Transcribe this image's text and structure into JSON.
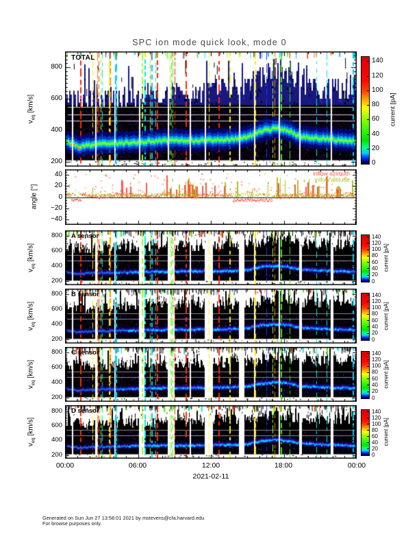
{
  "title": "SPC ion mode quick look, mode 0",
  "x_axis": {
    "ticks": [
      "00:00",
      "06:00",
      "12:00",
      "18:00",
      "00:00"
    ],
    "date": "2021-02-11"
  },
  "footer": {
    "line1": "Generated on Sun Jun 27 13:58:01 2021 by mstevens@cfa.harvard.edu",
    "line2": "For browse purposes only."
  },
  "chart_data": {
    "type": "heatmap",
    "description": "SPC ion mode quick look spectrograms: total and per-sensor ion current vs equivalent speed over one day, plus inflow angle time series",
    "time_range": [
      "2021-02-11 00:00",
      "2021-02-12 00:00"
    ],
    "colormap": [
      [
        0,
        "#000000"
      ],
      [
        0.02,
        "#000088"
      ],
      [
        0.06,
        "#0040ff"
      ],
      [
        0.1,
        "#00ccff"
      ],
      [
        0.15,
        "#00ff88"
      ],
      [
        0.22,
        "#00e400"
      ],
      [
        0.35,
        "#4cff00"
      ],
      [
        0.45,
        "#aaff00"
      ],
      [
        0.52,
        "#ffff00"
      ],
      [
        0.6,
        "#ffa500"
      ],
      [
        0.68,
        "#ff4400"
      ],
      [
        0.78,
        "#ff0800"
      ],
      [
        1,
        "#d80000"
      ]
    ],
    "stripe_palette": [
      "#ff2a00",
      "#ff2a00",
      "#ff7700",
      "#ffee00",
      "#44ee00",
      "#44ee00",
      "#00eedd",
      "#00ccff",
      "#2233ff",
      "#99ff33"
    ],
    "panels": {
      "total": {
        "label": "TOTAL",
        "ylabel": {
          "main": "v",
          "sub": "eq",
          "unit": " [km/s]"
        },
        "ylim": [
          170,
          900
        ],
        "yticks": [
          200,
          400,
          600,
          800
        ],
        "minor_tick": 25,
        "seed": 101,
        "texture_color": "#2a0a55",
        "white_lines": [
          550,
          500,
          460
        ],
        "band_profile": [
          [
            0,
            330
          ],
          [
            0.04,
            295
          ],
          [
            0.1,
            310
          ],
          [
            0.2,
            320
          ],
          [
            0.3,
            330
          ],
          [
            0.45,
            335
          ],
          [
            0.55,
            340
          ],
          [
            0.62,
            350
          ],
          [
            0.67,
            395
          ],
          [
            0.72,
            410
          ],
          [
            0.76,
            400
          ],
          [
            0.8,
            360
          ],
          [
            0.88,
            345
          ],
          [
            0.95,
            335
          ],
          [
            1,
            330
          ]
        ],
        "envelope_profile": [
          [
            0,
            640
          ],
          [
            0.06,
            600
          ],
          [
            0.15,
            610
          ],
          [
            0.3,
            630
          ],
          [
            0.45,
            640
          ],
          [
            0.55,
            650
          ],
          [
            0.63,
            670
          ],
          [
            0.68,
            760
          ],
          [
            0.74,
            780
          ],
          [
            0.78,
            700
          ],
          [
            0.85,
            660
          ],
          [
            0.93,
            650
          ],
          [
            1,
            680
          ]
        ],
        "band_layers": [
          [
            75,
            "#000a8a",
            0.75
          ],
          [
            45,
            "#0044dd",
            0.85
          ],
          [
            26,
            "#00b8ff",
            0.9
          ],
          [
            13,
            "#2bee55",
            1
          ],
          [
            7,
            "#66ff44",
            1
          ]
        ],
        "colorbar": {
          "label": "current [pA]",
          "ticks": [
            0,
            20,
            40,
            60,
            80,
            100,
            120,
            140
          ],
          "lim": [
            0,
            147
          ]
        }
      },
      "angle": {
        "ylabel": "angle [°]",
        "ylim": [
          -50,
          50
        ],
        "yticks": [
          -40,
          -20,
          0,
          20,
          40
        ],
        "minor_tick": 5,
        "seed": 606,
        "series": [
          {
            "name": "inflow azimuth",
            "color": "#ff5544"
          },
          {
            "name": "inflow altitude",
            "color": "#a8c81e"
          }
        ]
      },
      "a": {
        "label": "A sensor",
        "ylabel": {
          "main": "v",
          "sub": "eq",
          "unit": " [km/s]"
        },
        "ylim": [
          150,
          870
        ],
        "yticks": [
          200,
          400,
          600,
          800
        ],
        "minor_tick": 25,
        "seed": 202,
        "texture_color": "#1d0742",
        "white_lines": [
          545,
          470
        ],
        "band_profile": [
          [
            0,
            325
          ],
          [
            0.04,
            298
          ],
          [
            0.1,
            310
          ],
          [
            0.2,
            318
          ],
          [
            0.3,
            328
          ],
          [
            0.45,
            332
          ],
          [
            0.55,
            338
          ],
          [
            0.62,
            348
          ],
          [
            0.67,
            390
          ],
          [
            0.72,
            405
          ],
          [
            0.76,
            395
          ],
          [
            0.8,
            358
          ],
          [
            0.88,
            342
          ],
          [
            0.95,
            332
          ],
          [
            1,
            328
          ]
        ],
        "envelope_profile": [
          [
            0,
            650
          ],
          [
            0.08,
            610
          ],
          [
            0.2,
            640
          ],
          [
            0.35,
            650
          ],
          [
            0.5,
            660
          ],
          [
            0.65,
            690
          ],
          [
            0.72,
            770
          ],
          [
            0.8,
            700
          ],
          [
            0.9,
            670
          ],
          [
            1,
            690
          ]
        ],
        "band_layers": [
          [
            42,
            "#1a0566",
            0.9
          ],
          [
            24,
            "#2222cc",
            0.9
          ],
          [
            12,
            "#2255ff",
            0.95
          ],
          [
            6,
            "#00aaff",
            0.9
          ]
        ],
        "colorbar": {
          "label": "current [pA]",
          "ticks": [
            0,
            20,
            40,
            60,
            80,
            100,
            120,
            140
          ],
          "lim": [
            0,
            147
          ]
        }
      },
      "b": {
        "label": "B sensor",
        "ylabel": {
          "main": "v",
          "sub": "eq",
          "unit": " [km/s]"
        },
        "ylim": [
          150,
          870
        ],
        "yticks": [
          200,
          400,
          600,
          800
        ],
        "minor_tick": 25,
        "seed": 303,
        "texture_color": "#1d0742",
        "white_lines": [
          545,
          470
        ],
        "band_profile": [
          [
            0,
            325
          ],
          [
            0.04,
            298
          ],
          [
            0.1,
            310
          ],
          [
            0.2,
            318
          ],
          [
            0.3,
            328
          ],
          [
            0.45,
            332
          ],
          [
            0.55,
            338
          ],
          [
            0.62,
            348
          ],
          [
            0.67,
            390
          ],
          [
            0.72,
            405
          ],
          [
            0.76,
            395
          ],
          [
            0.8,
            358
          ],
          [
            0.88,
            342
          ],
          [
            0.95,
            332
          ],
          [
            1,
            328
          ]
        ],
        "envelope_profile": [
          [
            0,
            640
          ],
          [
            0.08,
            600
          ],
          [
            0.2,
            635
          ],
          [
            0.35,
            645
          ],
          [
            0.5,
            655
          ],
          [
            0.65,
            685
          ],
          [
            0.72,
            765
          ],
          [
            0.8,
            695
          ],
          [
            0.9,
            665
          ],
          [
            1,
            685
          ]
        ],
        "band_layers": [
          [
            42,
            "#1a0566",
            0.9
          ],
          [
            24,
            "#2222cc",
            0.9
          ],
          [
            12,
            "#2255ff",
            0.95
          ],
          [
            6,
            "#00aaff",
            0.9
          ]
        ],
        "colorbar": {
          "label": "current [pA]",
          "ticks": [
            0,
            20,
            40,
            60,
            80,
            100,
            120,
            140
          ],
          "lim": [
            0,
            147
          ]
        }
      },
      "c": {
        "label": "C sensor",
        "ylabel": {
          "main": "v",
          "sub": "eq",
          "unit": " [km/s]"
        },
        "ylim": [
          150,
          870
        ],
        "yticks": [
          200,
          400,
          600,
          800
        ],
        "minor_tick": 25,
        "seed": 404,
        "texture_color": "#1d0742",
        "white_lines": [
          545,
          470
        ],
        "band_profile": [
          [
            0,
            325
          ],
          [
            0.04,
            298
          ],
          [
            0.1,
            310
          ],
          [
            0.2,
            318
          ],
          [
            0.3,
            328
          ],
          [
            0.45,
            332
          ],
          [
            0.55,
            338
          ],
          [
            0.62,
            348
          ],
          [
            0.67,
            390
          ],
          [
            0.72,
            405
          ],
          [
            0.76,
            395
          ],
          [
            0.8,
            358
          ],
          [
            0.88,
            342
          ],
          [
            0.95,
            332
          ],
          [
            1,
            328
          ]
        ],
        "envelope_profile": [
          [
            0,
            645
          ],
          [
            0.08,
            605
          ],
          [
            0.2,
            638
          ],
          [
            0.35,
            648
          ],
          [
            0.5,
            658
          ],
          [
            0.65,
            688
          ],
          [
            0.72,
            768
          ],
          [
            0.8,
            698
          ],
          [
            0.9,
            668
          ],
          [
            1,
            688
          ]
        ],
        "band_layers": [
          [
            42,
            "#1a0566",
            0.9
          ],
          [
            24,
            "#2222cc",
            0.9
          ],
          [
            12,
            "#2255ff",
            0.95
          ],
          [
            6,
            "#00aaff",
            0.9
          ]
        ],
        "colorbar": {
          "label": "current [pA]",
          "ticks": [
            0,
            20,
            40,
            60,
            80,
            100,
            120,
            140
          ],
          "lim": [
            0,
            147
          ]
        }
      },
      "d": {
        "label": "D sensor",
        "ylabel": {
          "main": "v",
          "sub": "eq",
          "unit": " [km/s]"
        },
        "ylim": [
          150,
          880
        ],
        "yticks": [
          200,
          400,
          600,
          800
        ],
        "minor_tick": 25,
        "seed": 505,
        "texture_color": "#1d0742",
        "white_lines": [
          545,
          470
        ],
        "band_profile": [
          [
            0,
            325
          ],
          [
            0.04,
            298
          ],
          [
            0.1,
            310
          ],
          [
            0.2,
            318
          ],
          [
            0.3,
            328
          ],
          [
            0.45,
            332
          ],
          [
            0.55,
            338
          ],
          [
            0.62,
            348
          ],
          [
            0.67,
            390
          ],
          [
            0.72,
            405
          ],
          [
            0.76,
            395
          ],
          [
            0.8,
            358
          ],
          [
            0.88,
            342
          ],
          [
            0.95,
            332
          ],
          [
            1,
            328
          ]
        ],
        "envelope_profile": [
          [
            0,
            648
          ],
          [
            0.08,
            608
          ],
          [
            0.2,
            640
          ],
          [
            0.35,
            650
          ],
          [
            0.5,
            660
          ],
          [
            0.65,
            690
          ],
          [
            0.72,
            770
          ],
          [
            0.8,
            700
          ],
          [
            0.9,
            670
          ],
          [
            1,
            690
          ]
        ],
        "band_layers": [
          [
            42,
            "#1a0566",
            0.9
          ],
          [
            24,
            "#2222cc",
            0.9
          ],
          [
            12,
            "#2a66ff",
            0.95
          ],
          [
            6,
            "#00bbff",
            0.95
          ]
        ],
        "colorbar": {
          "label": "current [pA]",
          "ticks": [
            0,
            20,
            40,
            60,
            80,
            100,
            120,
            140
          ],
          "lim": [
            0,
            147
          ]
        }
      }
    }
  }
}
